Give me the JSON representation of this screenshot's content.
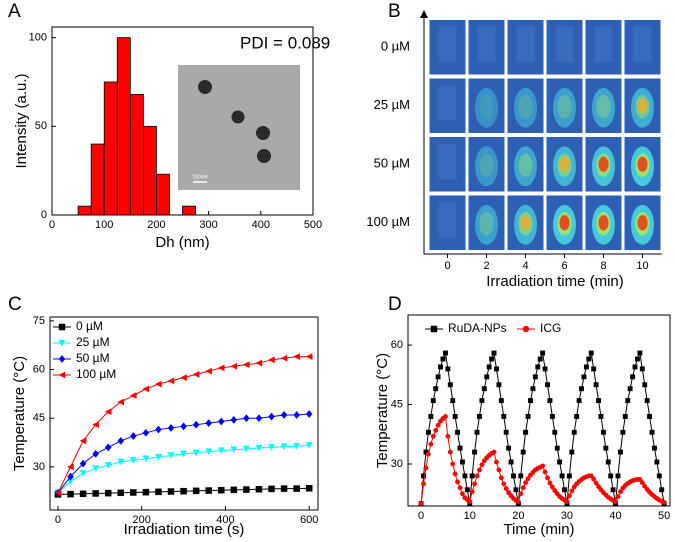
{
  "chart_data": [
    {
      "type": "histogram",
      "panel_label": "A",
      "annotation": "PDI = 0.089",
      "inset_scale_label": "100nm",
      "xlabel": "Dh (nm)",
      "ylabel": "Intensity (a.u.)",
      "bins": [
        50,
        75,
        100,
        125,
        150,
        175,
        200,
        225,
        250,
        275
      ],
      "values": [
        5,
        40,
        75,
        100,
        68,
        50,
        23,
        0,
        5
      ],
      "color": "#ff0000",
      "xlim": [
        0,
        500
      ],
      "xticks": [
        0,
        100,
        200,
        300,
        400,
        500
      ],
      "ylim": [
        0,
        106
      ],
      "yticks": [
        0,
        50,
        100
      ]
    },
    {
      "type": "image-grid",
      "panel_label": "B",
      "rows": [
        "0 µM",
        "25 µM",
        "50 µM",
        "100 µM"
      ],
      "xlabel": "Irradiation time (min)",
      "xlim": [
        -1,
        11
      ],
      "xticks": [
        0,
        2,
        4,
        6,
        8,
        10
      ]
    },
    {
      "type": "line",
      "panel_label": "C",
      "xlabel": "Irradiation time (s)",
      "ylabel": "Temperature (°C)",
      "legend": "upper left",
      "x": [
        0,
        30,
        60,
        90,
        120,
        150,
        180,
        210,
        240,
        270,
        300,
        330,
        360,
        390,
        420,
        450,
        480,
        510,
        540,
        570,
        600
      ],
      "series": [
        {
          "name": "0 µM",
          "color": "#000000",
          "marker": "square",
          "values": [
            21.5,
            21.6,
            21.7,
            21.8,
            21.9,
            22,
            22.1,
            22.2,
            22.3,
            22.4,
            22.5,
            22.6,
            22.7,
            22.8,
            22.9,
            23,
            23.1,
            23.2,
            23.3,
            23.3,
            23.4
          ]
        },
        {
          "name": "25 µM",
          "color": "#00ffff",
          "marker": "triangle-down",
          "values": [
            22,
            25.5,
            28,
            29.5,
            30.5,
            31.5,
            32,
            32.5,
            33,
            33.5,
            34,
            34.3,
            34.7,
            35,
            35.3,
            35.5,
            35.8,
            36,
            36.2,
            36.4,
            36.6
          ]
        },
        {
          "name": "50 µM",
          "color": "#0000ff",
          "marker": "diamond",
          "values": [
            22,
            27,
            31,
            34,
            36,
            38,
            39.5,
            40.5,
            41.5,
            42,
            42.5,
            43,
            43.5,
            44,
            44.5,
            45,
            45,
            45.5,
            46,
            46,
            46.3
          ]
        },
        {
          "name": "100 µM",
          "color": "#ff0000",
          "marker": "triangle-left",
          "values": [
            22,
            30,
            38,
            43,
            47,
            50,
            52,
            54,
            55.5,
            56.5,
            57.5,
            58.5,
            59.5,
            60.5,
            61,
            61.5,
            62,
            63,
            63.5,
            64,
            64
          ]
        }
      ],
      "xlim": [
        -19,
        621
      ],
      "xticks": [
        0,
        200,
        400,
        600
      ],
      "ylim": [
        16.7,
        76.2
      ],
      "yticks": [
        30,
        45,
        60,
        75
      ]
    },
    {
      "type": "line",
      "panel_label": "D",
      "xlabel": "Time (min)",
      "ylabel": "Temperature (°C)",
      "legend": "top",
      "x": [
        0,
        0.5,
        1,
        1.5,
        2,
        2.5,
        3,
        3.5,
        4,
        4.5,
        5,
        5.5,
        6,
        6.5,
        7,
        7.5,
        8,
        8.5,
        9,
        9.5,
        10,
        10.5,
        11,
        11.5,
        12,
        12.5,
        13,
        13.5,
        14,
        14.5,
        15,
        15.5,
        16,
        16.5,
        17,
        17.5,
        18,
        18.5,
        19,
        19.5,
        20,
        20.5,
        21,
        21.5,
        22,
        22.5,
        23,
        23.5,
        24,
        24.5,
        25,
        25.5,
        26,
        26.5,
        27,
        27.5,
        28,
        28.5,
        29,
        29.5,
        30,
        30.5,
        31,
        31.5,
        32,
        32.5,
        33,
        33.5,
        34,
        34.5,
        35,
        35.5,
        36,
        36.5,
        37,
        37.5,
        38,
        38.5,
        39,
        39.5,
        40,
        40.5,
        41,
        41.5,
        42,
        42.5,
        43,
        43.5,
        44,
        44.5,
        45,
        45.5,
        46,
        46.5,
        47,
        47.5,
        48,
        48.5,
        49,
        49.5,
        50
      ],
      "series": [
        {
          "name": "RuDA-NPs",
          "color": "#000000",
          "marker": "square",
          "values": [
            20,
            27,
            33,
            38,
            42,
            46,
            49,
            52,
            54.5,
            56.5,
            58,
            54,
            50,
            46,
            42,
            38,
            34,
            30.5,
            27,
            23.5,
            20,
            27,
            33,
            38,
            42,
            46,
            49,
            52,
            54.5,
            56.5,
            58,
            54,
            50,
            46,
            42,
            38,
            34,
            30.5,
            27,
            23.5,
            20,
            27,
            33,
            38,
            42,
            46,
            49,
            52,
            54.5,
            56.5,
            58,
            54,
            50,
            46,
            42,
            38,
            34,
            30.5,
            27,
            23.5,
            20,
            27,
            33,
            38,
            42,
            46,
            49,
            52,
            54.5,
            56.5,
            58,
            54,
            50,
            46,
            42,
            38,
            34,
            30.5,
            27,
            23.5,
            20,
            27,
            33,
            38,
            42,
            46,
            49,
            52,
            54.5,
            56.5,
            58,
            54,
            50,
            46,
            42,
            38,
            34,
            30.5,
            27,
            23.5,
            20
          ]
        },
        {
          "name": "ICG",
          "color": "#ff0000",
          "marker": "circle",
          "values": [
            20,
            25,
            29,
            32.5,
            35,
            37,
            38.5,
            39.8,
            40.8,
            41.5,
            42,
            37,
            33,
            30,
            27.5,
            25.5,
            24,
            22.5,
            21.5,
            21,
            20.5,
            23,
            25,
            27,
            28.5,
            29.8,
            30.8,
            31.6,
            32.2,
            32.7,
            33,
            30.5,
            28.5,
            26.5,
            25,
            23.8,
            22.8,
            22,
            21.3,
            20.8,
            20.5,
            22.5,
            24,
            25.3,
            26.3,
            27.2,
            27.9,
            28.5,
            28.9,
            29.2,
            29.5,
            28,
            26.5,
            25.2,
            24.2,
            23.3,
            22.5,
            21.8,
            21.3,
            20.9,
            20.5,
            22,
            23.2,
            24.2,
            25,
            25.6,
            26.1,
            26.5,
            26.8,
            27,
            27,
            26.2,
            25.2,
            24.3,
            23.5,
            22.8,
            22.2,
            21.6,
            21.2,
            20.8,
            20.5,
            21.8,
            23,
            23.9,
            24.6,
            25.1,
            25.5,
            25.8,
            26,
            26.1,
            26.1,
            25.3,
            24.4,
            23.6,
            22.9,
            22.3,
            21.8,
            21.3,
            20.9,
            20.6,
            20.3
          ]
        }
      ],
      "xlim": [
        -2.7,
        51.2
      ],
      "xticks": [
        0,
        10,
        20,
        30,
        40,
        50
      ],
      "ylim": [
        19.4,
        67.6
      ],
      "yticks": [
        30,
        45,
        60
      ]
    }
  ]
}
